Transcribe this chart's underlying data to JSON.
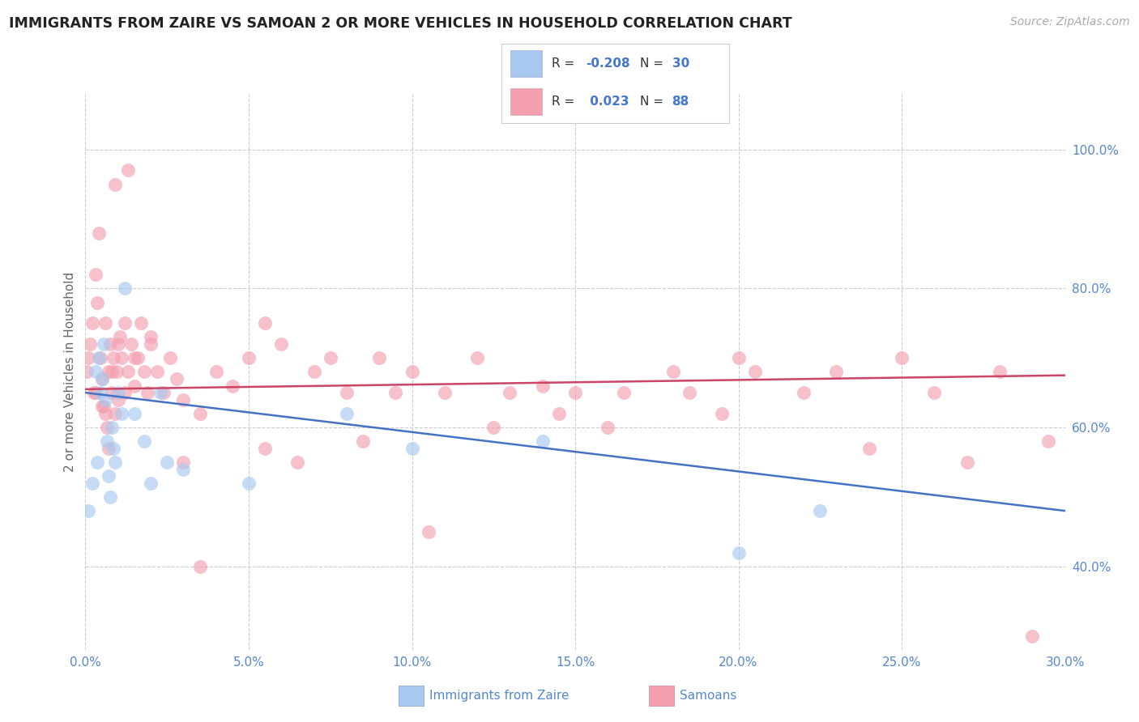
{
  "title": "IMMIGRANTS FROM ZAIRE VS SAMOAN 2 OR MORE VEHICLES IN HOUSEHOLD CORRELATION CHART",
  "source": "Source: ZipAtlas.com",
  "ylabel": "2 or more Vehicles in Household",
  "xlim": [
    0.0,
    30.0
  ],
  "ylim": [
    28.0,
    108.0
  ],
  "x_ticks": [
    0.0,
    5.0,
    10.0,
    15.0,
    20.0,
    25.0,
    30.0
  ],
  "y_ticks": [
    40.0,
    60.0,
    80.0,
    100.0
  ],
  "legend_r_blue": "-0.208",
  "legend_n_blue": "30",
  "legend_r_pink": "0.023",
  "legend_n_pink": "88",
  "blue_fill": "#a8c8f0",
  "pink_fill": "#f4a0b0",
  "blue_line": "#4472c4",
  "pink_line": "#cc4466",
  "grid_color": "#cccccc",
  "blue_x": [
    0.1,
    0.2,
    0.3,
    0.35,
    0.4,
    0.45,
    0.5,
    0.55,
    0.6,
    0.65,
    0.7,
    0.75,
    0.8,
    0.85,
    0.9,
    1.0,
    1.1,
    1.2,
    1.5,
    1.8,
    2.0,
    2.3,
    2.5,
    3.0,
    5.0,
    8.0,
    10.0,
    14.0,
    20.0,
    22.5
  ],
  "blue_y": [
    48,
    52,
    68,
    55,
    70,
    65,
    67,
    72,
    64,
    58,
    53,
    50,
    60,
    57,
    55,
    65,
    62,
    80,
    62,
    58,
    52,
    65,
    55,
    54,
    52,
    62,
    57,
    58,
    42,
    48
  ],
  "pink_x": [
    0.05,
    0.1,
    0.15,
    0.2,
    0.25,
    0.3,
    0.35,
    0.4,
    0.45,
    0.5,
    0.55,
    0.6,
    0.65,
    0.7,
    0.75,
    0.8,
    0.85,
    0.9,
    0.95,
    1.0,
    1.05,
    1.1,
    1.2,
    1.3,
    1.4,
    1.5,
    1.6,
    1.7,
    1.8,
    1.9,
    2.0,
    2.2,
    2.4,
    2.6,
    2.8,
    3.0,
    3.5,
    4.0,
    4.5,
    5.0,
    5.5,
    6.0,
    7.0,
    8.0,
    9.0,
    10.0,
    11.0,
    12.0,
    13.0,
    14.0,
    14.5,
    15.0,
    16.5,
    18.0,
    18.5,
    20.0,
    20.5,
    22.0,
    23.0,
    25.0,
    26.0,
    28.0,
    29.5,
    0.3,
    0.5,
    0.6,
    0.7,
    0.8,
    1.0,
    1.2,
    1.5,
    2.0,
    3.0,
    5.5,
    8.5,
    10.5,
    3.5,
    6.5,
    12.5,
    7.5,
    9.5,
    16.0,
    19.5,
    24.0,
    27.0,
    29.0,
    0.9,
    1.3
  ],
  "pink_y": [
    68,
    70,
    72,
    75,
    65,
    82,
    78,
    88,
    70,
    67,
    63,
    75,
    60,
    68,
    72,
    65,
    70,
    62,
    68,
    64,
    73,
    70,
    65,
    68,
    72,
    66,
    70,
    75,
    68,
    65,
    72,
    68,
    65,
    70,
    67,
    64,
    62,
    68,
    66,
    70,
    75,
    72,
    68,
    65,
    70,
    68,
    65,
    70,
    65,
    66,
    62,
    65,
    65,
    68,
    65,
    70,
    68,
    65,
    68,
    70,
    65,
    68,
    58,
    65,
    63,
    62,
    57,
    68,
    72,
    75,
    70,
    73,
    55,
    57,
    58,
    45,
    40,
    55,
    60,
    70,
    65,
    60,
    62,
    57,
    55,
    30,
    95,
    97
  ]
}
